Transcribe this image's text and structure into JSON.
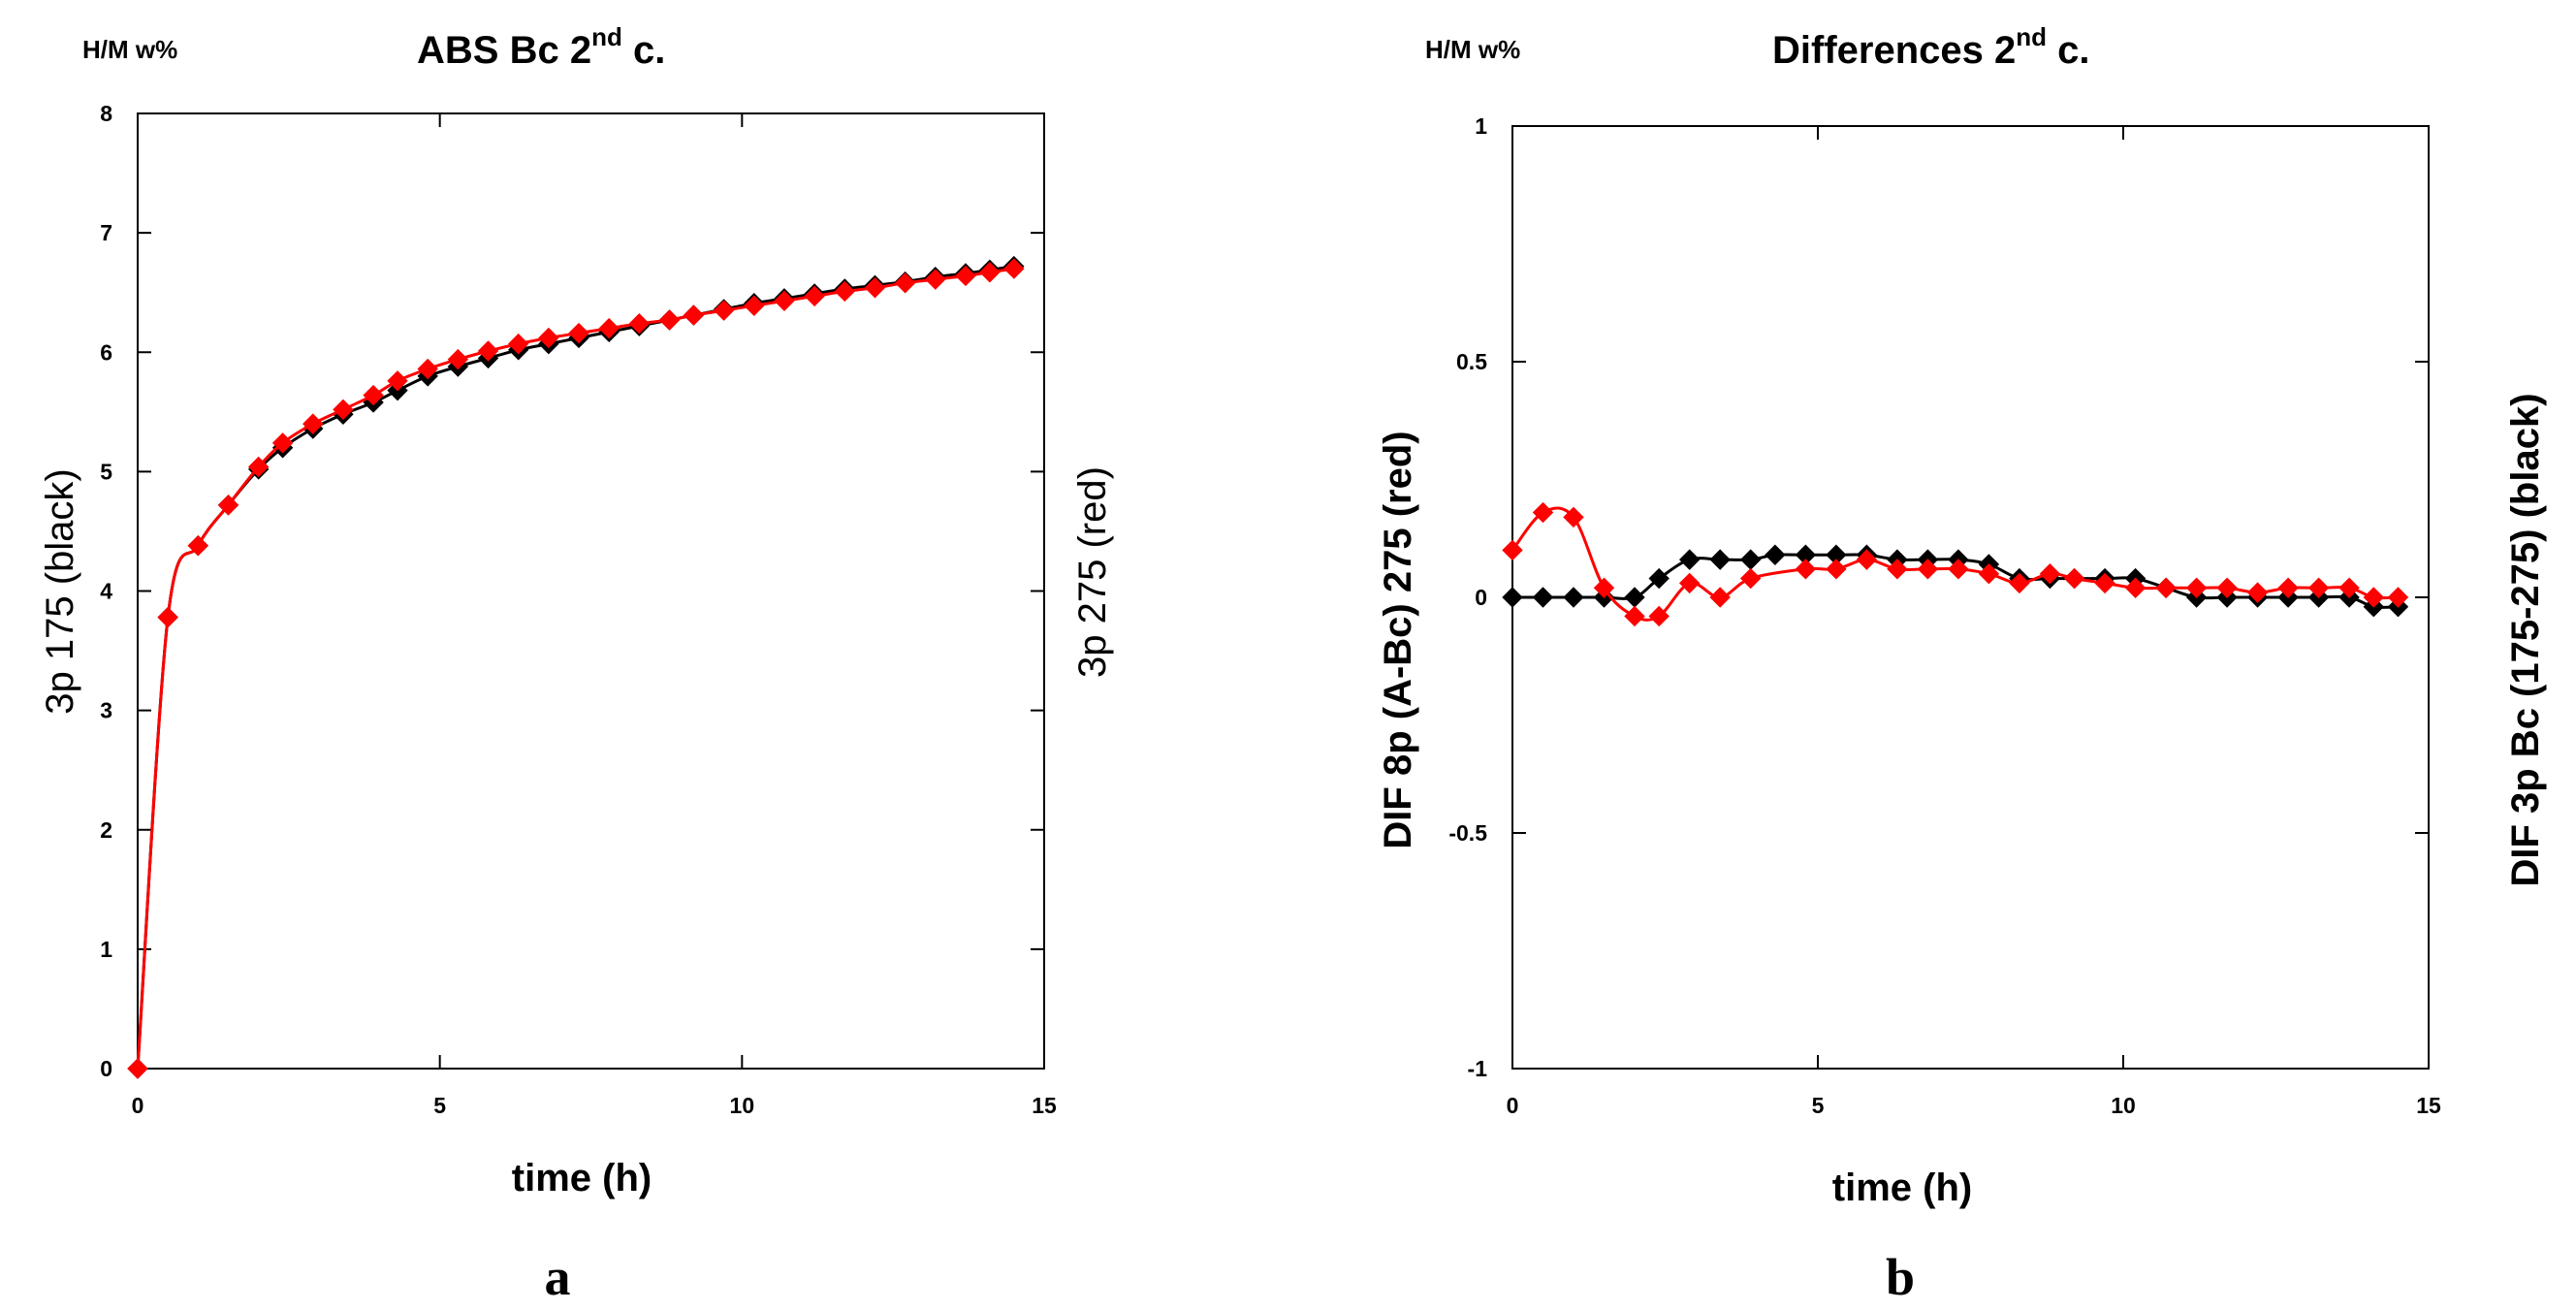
{
  "chart_data": [
    {
      "id": "a",
      "type": "line",
      "unit_label": "H/M w%",
      "title": "ABS Bc 2",
      "title_sup": "nd",
      "title_suffix": " c.",
      "xlabel": "time (h)",
      "ylabel_left": "3p 175 (black)",
      "ylabel_right": "3p 275 (red)",
      "panel_label": "a",
      "xlim": [
        0,
        15
      ],
      "ylim": [
        0,
        8
      ],
      "xticks": [
        0,
        5,
        10,
        15
      ],
      "yticks": [
        0,
        1,
        2,
        3,
        4,
        5,
        6,
        7,
        8
      ],
      "series": [
        {
          "name": "3p 175 (black)",
          "color": "#000000",
          "marker": "diamond",
          "x": [
            0,
            0.5,
            1,
            1.5,
            2,
            2.4,
            2.9,
            3.4,
            3.9,
            4.3,
            4.8,
            5.3,
            5.8,
            6.3,
            6.8,
            7.3,
            7.8,
            8.3,
            8.8,
            9.2,
            9.7,
            10.2,
            10.7,
            11.2,
            11.7,
            12.2,
            12.7,
            13.2,
            13.7,
            14.1,
            14.5
          ],
          "y": [
            0,
            3.78,
            4.38,
            4.72,
            5.02,
            5.2,
            5.36,
            5.48,
            5.58,
            5.68,
            5.8,
            5.88,
            5.95,
            6.02,
            6.07,
            6.12,
            6.17,
            6.22,
            6.27,
            6.31,
            6.36,
            6.41,
            6.45,
            6.49,
            6.53,
            6.56,
            6.59,
            6.63,
            6.66,
            6.69,
            6.72
          ]
        },
        {
          "name": "3p 275 (red)",
          "color": "#ff0000",
          "marker": "diamond",
          "x": [
            0,
            0.5,
            1,
            1.5,
            2,
            2.4,
            2.9,
            3.4,
            3.9,
            4.3,
            4.8,
            5.3,
            5.8,
            6.3,
            6.8,
            7.3,
            7.8,
            8.3,
            8.8,
            9.2,
            9.7,
            10.2,
            10.7,
            11.2,
            11.7,
            12.2,
            12.7,
            13.2,
            13.7,
            14.1,
            14.5
          ],
          "y": [
            0,
            3.78,
            4.38,
            4.72,
            5.04,
            5.24,
            5.4,
            5.52,
            5.64,
            5.76,
            5.86,
            5.94,
            6.01,
            6.07,
            6.12,
            6.16,
            6.2,
            6.24,
            6.27,
            6.31,
            6.35,
            6.39,
            6.43,
            6.47,
            6.51,
            6.54,
            6.58,
            6.61,
            6.64,
            6.67,
            6.7
          ]
        }
      ]
    },
    {
      "id": "b",
      "type": "line",
      "unit_label": "H/M w%",
      "title": "Differences 2",
      "title_sup": "nd",
      "title_suffix": " c.",
      "xlabel": "time (h)",
      "ylabel_left": "DIF 8p (A-Bc) 275 (red)",
      "ylabel_right": "DIF 3p Bc (175-275) (black)",
      "panel_label": "b",
      "xlim": [
        0,
        15
      ],
      "ylim": [
        -1,
        1
      ],
      "xticks": [
        0,
        5,
        10,
        15
      ],
      "yticks": [
        -1,
        -0.5,
        0,
        0.5,
        1
      ],
      "series": [
        {
          "name": "DIF 3p Bc (175-275) (black)",
          "color": "#000000",
          "marker": "diamond",
          "x": [
            0,
            0.5,
            1,
            1.5,
            2,
            2.4,
            2.9,
            3.4,
            3.9,
            4.3,
            4.8,
            5.3,
            5.8,
            6.3,
            6.8,
            7.3,
            7.8,
            8.3,
            8.8,
            9.2,
            9.7,
            10.2,
            10.7,
            11.2,
            11.7,
            12.2,
            12.7,
            13.2,
            13.7,
            14.1,
            14.5
          ],
          "y": [
            0,
            0,
            0,
            0,
            0,
            0.04,
            0.08,
            0.08,
            0.08,
            0.09,
            0.09,
            0.09,
            0.09,
            0.08,
            0.08,
            0.08,
            0.07,
            0.04,
            0.04,
            0.04,
            0.04,
            0.04,
            0.02,
            0,
            0,
            0,
            0,
            0,
            0,
            -0.02,
            -0.02
          ]
        },
        {
          "name": "DIF 8p (A-Bc) 275 (red)",
          "color": "#ff0000",
          "marker": "diamond",
          "x": [
            0,
            0.5,
            1,
            1.5,
            2,
            2.4,
            2.9,
            3.4,
            3.9,
            4.8,
            5.3,
            5.8,
            6.3,
            6.8,
            7.3,
            7.8,
            8.3,
            8.8,
            9.2,
            9.7,
            10.2,
            10.7,
            11.2,
            11.7,
            12.2,
            12.7,
            13.2,
            13.7,
            14.1,
            14.5
          ],
          "y": [
            0.1,
            0.18,
            0.17,
            0.02,
            -0.04,
            -0.04,
            0.03,
            0,
            0.04,
            0.06,
            0.06,
            0.08,
            0.06,
            0.06,
            0.06,
            0.05,
            0.03,
            0.05,
            0.04,
            0.03,
            0.02,
            0.02,
            0.02,
            0.02,
            0.01,
            0.02,
            0.02,
            0.02,
            0,
            0
          ]
        }
      ]
    }
  ]
}
